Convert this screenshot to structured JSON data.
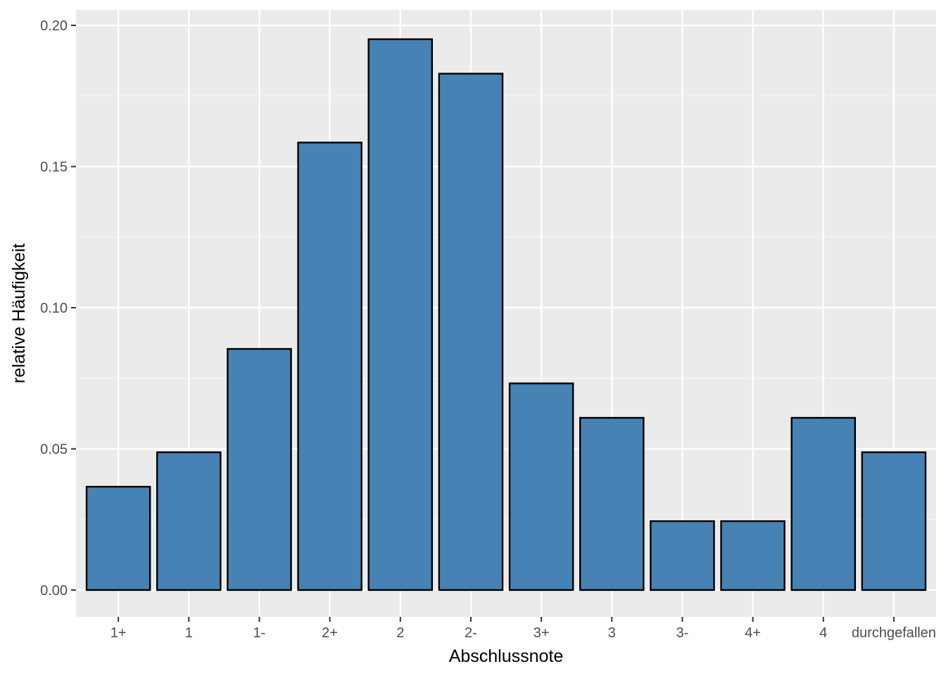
{
  "chart_data": {
    "type": "bar",
    "title": "",
    "xlabel": "Abschlussnote",
    "ylabel": "relative Häufigkeit",
    "categories": [
      "1+",
      "1",
      "1-",
      "2+",
      "2",
      "2-",
      "3+",
      "3",
      "3-",
      "4+",
      "4",
      "durchgefallen"
    ],
    "values": [
      0.0366,
      0.0488,
      0.0854,
      0.1585,
      0.1951,
      0.1829,
      0.0732,
      0.061,
      0.0244,
      0.0244,
      0.061,
      0.0488
    ],
    "ylim": [
      -0.0095,
      0.2055
    ],
    "yticks": [
      0.0,
      0.05,
      0.1,
      0.15,
      0.2
    ],
    "ytick_labels": [
      "0.00",
      "0.05",
      "0.10",
      "0.15",
      "0.20"
    ],
    "grid": true,
    "legend": "none",
    "colors": {
      "bar_fill": "#4682b4",
      "bar_stroke": "#000000",
      "panel_background": "#ebebeb",
      "grid_major": "#ffffff",
      "grid_minor": "#f5f5f5",
      "tick_text": "#4d4d4d",
      "tick_mark": "#333333"
    }
  }
}
